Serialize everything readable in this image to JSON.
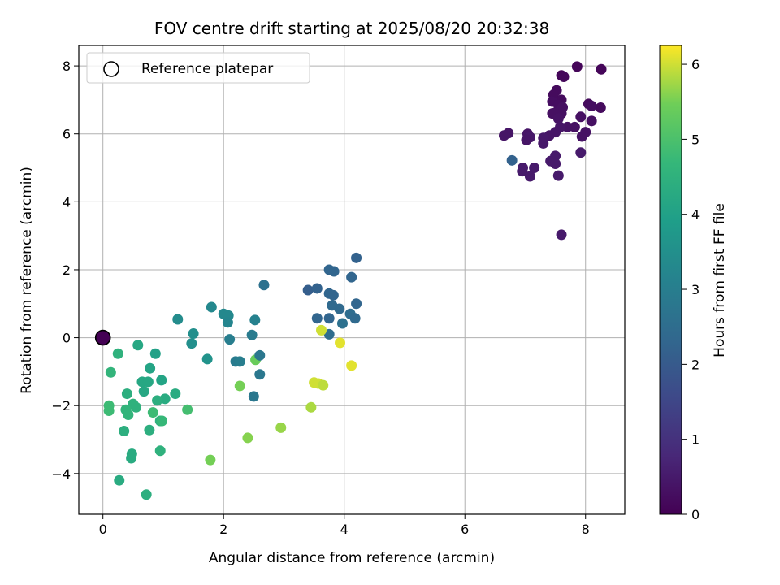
{
  "chart_data": {
    "type": "scatter",
    "title": "FOV centre drift starting at 2025/08/20 20:32:38",
    "xlabel": "Angular distance from reference (arcmin)",
    "ylabel": "Rotation from reference (arcmin)",
    "xlim": [
      -0.4,
      8.65
    ],
    "ylim": [
      -5.2,
      8.6
    ],
    "xticks": [
      0,
      2,
      4,
      6,
      8
    ],
    "yticks": [
      -4,
      -2,
      0,
      2,
      4,
      6,
      8
    ],
    "grid": true,
    "legend": {
      "location": "top-left",
      "entries": [
        "Reference platepar"
      ]
    },
    "reference_point": {
      "x": 0,
      "y": 0
    },
    "colorbar": {
      "label": "Hours from first FF file",
      "colormap": "viridis",
      "range": [
        0,
        6.25
      ],
      "ticks": [
        0,
        1,
        2,
        3,
        4,
        5,
        6
      ]
    },
    "points": [
      {
        "x": 7.86,
        "y": 7.98,
        "t": 0.1
      },
      {
        "x": 8.26,
        "y": 7.9,
        "t": 0.1
      },
      {
        "x": 7.6,
        "y": 7.72,
        "t": 0.1
      },
      {
        "x": 7.64,
        "y": 7.68,
        "t": 0.15
      },
      {
        "x": 7.52,
        "y": 7.28,
        "t": 0.2
      },
      {
        "x": 7.47,
        "y": 7.15,
        "t": 0.2
      },
      {
        "x": 7.6,
        "y": 7.0,
        "t": 0.2
      },
      {
        "x": 7.45,
        "y": 6.95,
        "t": 0.25
      },
      {
        "x": 7.55,
        "y": 6.85,
        "t": 0.25
      },
      {
        "x": 7.62,
        "y": 6.78,
        "t": 0.3
      },
      {
        "x": 7.5,
        "y": 6.62,
        "t": 0.3
      },
      {
        "x": 7.6,
        "y": 6.6,
        "t": 0.3
      },
      {
        "x": 7.45,
        "y": 6.6,
        "t": 0.3
      },
      {
        "x": 7.55,
        "y": 6.45,
        "t": 0.35
      },
      {
        "x": 8.05,
        "y": 6.88,
        "t": 0.2
      },
      {
        "x": 8.1,
        "y": 6.82,
        "t": 0.25
      },
      {
        "x": 8.25,
        "y": 6.77,
        "t": 0.2
      },
      {
        "x": 7.92,
        "y": 6.5,
        "t": 0.3
      },
      {
        "x": 8.1,
        "y": 6.38,
        "t": 0.3
      },
      {
        "x": 7.7,
        "y": 6.2,
        "t": 0.35
      },
      {
        "x": 7.82,
        "y": 6.2,
        "t": 0.3
      },
      {
        "x": 7.58,
        "y": 6.2,
        "t": 0.4
      },
      {
        "x": 7.5,
        "y": 6.05,
        "t": 0.4
      },
      {
        "x": 7.4,
        "y": 5.95,
        "t": 0.4
      },
      {
        "x": 8.0,
        "y": 6.05,
        "t": 0.35
      },
      {
        "x": 7.94,
        "y": 5.92,
        "t": 0.35
      },
      {
        "x": 6.65,
        "y": 5.95,
        "t": 0.4
      },
      {
        "x": 6.72,
        "y": 6.02,
        "t": 0.4
      },
      {
        "x": 7.04,
        "y": 6.0,
        "t": 0.4
      },
      {
        "x": 7.08,
        "y": 5.9,
        "t": 0.45
      },
      {
        "x": 7.02,
        "y": 5.82,
        "t": 0.4
      },
      {
        "x": 7.3,
        "y": 5.88,
        "t": 0.45
      },
      {
        "x": 7.3,
        "y": 5.72,
        "t": 0.45
      },
      {
        "x": 6.78,
        "y": 5.22,
        "t": 2.2
      },
      {
        "x": 7.5,
        "y": 5.35,
        "t": 0.5
      },
      {
        "x": 7.42,
        "y": 5.2,
        "t": 0.5
      },
      {
        "x": 7.5,
        "y": 5.12,
        "t": 0.5
      },
      {
        "x": 6.96,
        "y": 5.0,
        "t": 0.5
      },
      {
        "x": 7.15,
        "y": 5.0,
        "t": 0.5
      },
      {
        "x": 6.95,
        "y": 4.9,
        "t": 0.5
      },
      {
        "x": 7.08,
        "y": 4.75,
        "t": 0.5
      },
      {
        "x": 7.55,
        "y": 4.77,
        "t": 0.5
      },
      {
        "x": 7.92,
        "y": 5.45,
        "t": 0.5
      },
      {
        "x": 7.6,
        "y": 3.03,
        "t": 0.5
      },
      {
        "x": 4.2,
        "y": 2.35,
        "t": 2.2
      },
      {
        "x": 3.75,
        "y": 2.0,
        "t": 2.3
      },
      {
        "x": 3.83,
        "y": 1.95,
        "t": 2.3
      },
      {
        "x": 4.12,
        "y": 1.78,
        "t": 2.3
      },
      {
        "x": 2.67,
        "y": 1.55,
        "t": 2.6
      },
      {
        "x": 3.4,
        "y": 1.4,
        "t": 2.1
      },
      {
        "x": 3.55,
        "y": 1.45,
        "t": 2.2
      },
      {
        "x": 3.75,
        "y": 1.3,
        "t": 2.3
      },
      {
        "x": 3.82,
        "y": 1.25,
        "t": 2.3
      },
      {
        "x": 3.8,
        "y": 0.95,
        "t": 2.4
      },
      {
        "x": 4.2,
        "y": 1.0,
        "t": 2.3
      },
      {
        "x": 3.92,
        "y": 0.85,
        "t": 2.4
      },
      {
        "x": 4.1,
        "y": 0.7,
        "t": 2.5
      },
      {
        "x": 4.18,
        "y": 0.57,
        "t": 2.4
      },
      {
        "x": 3.55,
        "y": 0.57,
        "t": 2.3
      },
      {
        "x": 3.75,
        "y": 0.57,
        "t": 2.3
      },
      {
        "x": 3.97,
        "y": 0.42,
        "t": 2.6
      },
      {
        "x": 3.75,
        "y": 0.1,
        "t": 2.5
      },
      {
        "x": 3.62,
        "y": 0.22,
        "t": 6.0
      },
      {
        "x": 3.93,
        "y": -0.15,
        "t": 6.1
      },
      {
        "x": 4.12,
        "y": -0.82,
        "t": 6.1
      },
      {
        "x": 3.5,
        "y": -1.32,
        "t": 6.0
      },
      {
        "x": 3.57,
        "y": -1.35,
        "t": 6.0
      },
      {
        "x": 3.65,
        "y": -1.4,
        "t": 5.9
      },
      {
        "x": 3.45,
        "y": -2.05,
        "t": 5.8
      },
      {
        "x": 2.95,
        "y": -2.65,
        "t": 5.7
      },
      {
        "x": 2.4,
        "y": -2.95,
        "t": 5.6
      },
      {
        "x": 1.78,
        "y": -3.6,
        "t": 5.5
      },
      {
        "x": 2.27,
        "y": -1.42,
        "t": 5.5
      },
      {
        "x": 2.53,
        "y": -0.65,
        "t": 5.4
      },
      {
        "x": 2.52,
        "y": 0.52,
        "t": 3.1
      },
      {
        "x": 2.0,
        "y": 0.7,
        "t": 3.3
      },
      {
        "x": 2.08,
        "y": 0.65,
        "t": 3.3
      },
      {
        "x": 1.8,
        "y": 0.9,
        "t": 3.3
      },
      {
        "x": 2.07,
        "y": 0.45,
        "t": 3.2
      },
      {
        "x": 2.47,
        "y": 0.08,
        "t": 2.9
      },
      {
        "x": 2.1,
        "y": -0.05,
        "t": 3.0
      },
      {
        "x": 2.6,
        "y": -0.52,
        "t": 2.8
      },
      {
        "x": 2.2,
        "y": -0.7,
        "t": 2.9
      },
      {
        "x": 2.27,
        "y": -0.7,
        "t": 3.0
      },
      {
        "x": 2.6,
        "y": -1.08,
        "t": 2.8
      },
      {
        "x": 2.5,
        "y": -1.73,
        "t": 2.8
      },
      {
        "x": 1.5,
        "y": 0.12,
        "t": 3.5
      },
      {
        "x": 1.47,
        "y": -0.17,
        "t": 3.5
      },
      {
        "x": 1.24,
        "y": 0.54,
        "t": 3.4
      },
      {
        "x": 1.73,
        "y": -0.63,
        "t": 3.6
      },
      {
        "x": 1.4,
        "y": -2.12,
        "t": 4.9
      },
      {
        "x": 0.58,
        "y": -0.22,
        "t": 4.2
      },
      {
        "x": 0.25,
        "y": -0.47,
        "t": 4.5
      },
      {
        "x": 0.87,
        "y": -0.47,
        "t": 4.0
      },
      {
        "x": 0.78,
        "y": -0.9,
        "t": 4.1
      },
      {
        "x": 0.13,
        "y": -1.02,
        "t": 4.6
      },
      {
        "x": 0.65,
        "y": -1.3,
        "t": 4.2
      },
      {
        "x": 0.75,
        "y": -1.3,
        "t": 4.2
      },
      {
        "x": 0.97,
        "y": -1.25,
        "t": 4.1
      },
      {
        "x": 0.68,
        "y": -1.58,
        "t": 4.2
      },
      {
        "x": 1.2,
        "y": -1.65,
        "t": 4.3
      },
      {
        "x": 0.4,
        "y": -1.65,
        "t": 4.4
      },
      {
        "x": 1.03,
        "y": -1.8,
        "t": 4.3
      },
      {
        "x": 0.9,
        "y": -1.85,
        "t": 4.4
      },
      {
        "x": 0.5,
        "y": -1.95,
        "t": 4.5
      },
      {
        "x": 0.55,
        "y": -2.05,
        "t": 4.5
      },
      {
        "x": 0.1,
        "y": -2.0,
        "t": 4.8
      },
      {
        "x": 0.1,
        "y": -2.15,
        "t": 4.8
      },
      {
        "x": 0.38,
        "y": -2.12,
        "t": 4.6
      },
      {
        "x": 0.42,
        "y": -2.27,
        "t": 4.6
      },
      {
        "x": 0.83,
        "y": -2.2,
        "t": 4.8
      },
      {
        "x": 0.95,
        "y": -2.45,
        "t": 4.5
      },
      {
        "x": 0.98,
        "y": -2.45,
        "t": 4.7
      },
      {
        "x": 0.35,
        "y": -2.75,
        "t": 4.4
      },
      {
        "x": 0.77,
        "y": -2.72,
        "t": 4.4
      },
      {
        "x": 0.95,
        "y": -3.33,
        "t": 4.5
      },
      {
        "x": 0.48,
        "y": -3.42,
        "t": 4.3
      },
      {
        "x": 0.47,
        "y": -3.55,
        "t": 4.3
      },
      {
        "x": 0.27,
        "y": -4.2,
        "t": 4.3
      },
      {
        "x": 0.72,
        "y": -4.62,
        "t": 4.4
      }
    ]
  }
}
